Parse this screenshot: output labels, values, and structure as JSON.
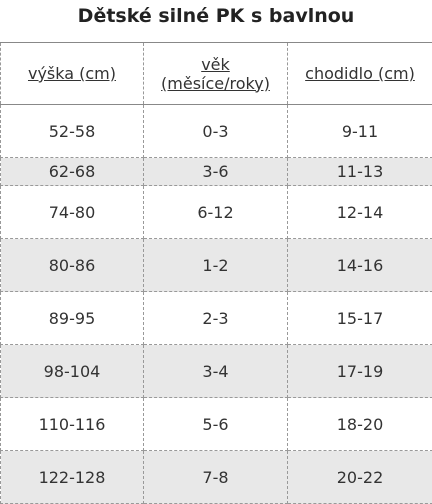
{
  "title": "Dětské silné PK s bavlnou",
  "table": {
    "header": [
      "výška (cm)",
      "věk (měsíce/roky)",
      "chodidlo (cm)"
    ],
    "rows": [
      [
        "52-58",
        "0-3",
        "9-11"
      ],
      [
        "62-68",
        "3-6",
        "11-13"
      ],
      [
        "74-80",
        "6-12",
        "12-14"
      ],
      [
        "80-86",
        "1-2",
        "14-16"
      ],
      [
        "89-95",
        "2-3",
        "15-17"
      ],
      [
        "98-104",
        "3-4",
        "17-19"
      ],
      [
        "110-116",
        "5-6",
        "18-20"
      ],
      [
        "122-128",
        "7-8",
        "20-22"
      ]
    ]
  }
}
